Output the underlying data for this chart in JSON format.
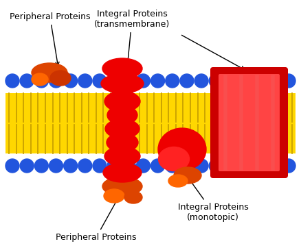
{
  "bg_color": "#ffffff",
  "lipid_color": "#FFD700",
  "lipid_line_color": "#C8A000",
  "head_color": "#2255DD",
  "red_protein": "#EE0000",
  "red_protein_dark": "#CC0000",
  "red_protein_light": "#FF4444",
  "orange_protein": "#DD4400",
  "orange_protein2": "#FF6600",
  "labels": {
    "peripheral_top": "Peripheral Proteins",
    "integral_trans": "Integral Proteins\n(transmembrane)",
    "peripheral_bot": "Peripheral Proteins",
    "integral_mono": "Integral Proteins\n(monotopic)"
  },
  "fig_width": 4.38,
  "fig_height": 3.62,
  "dpi": 100
}
